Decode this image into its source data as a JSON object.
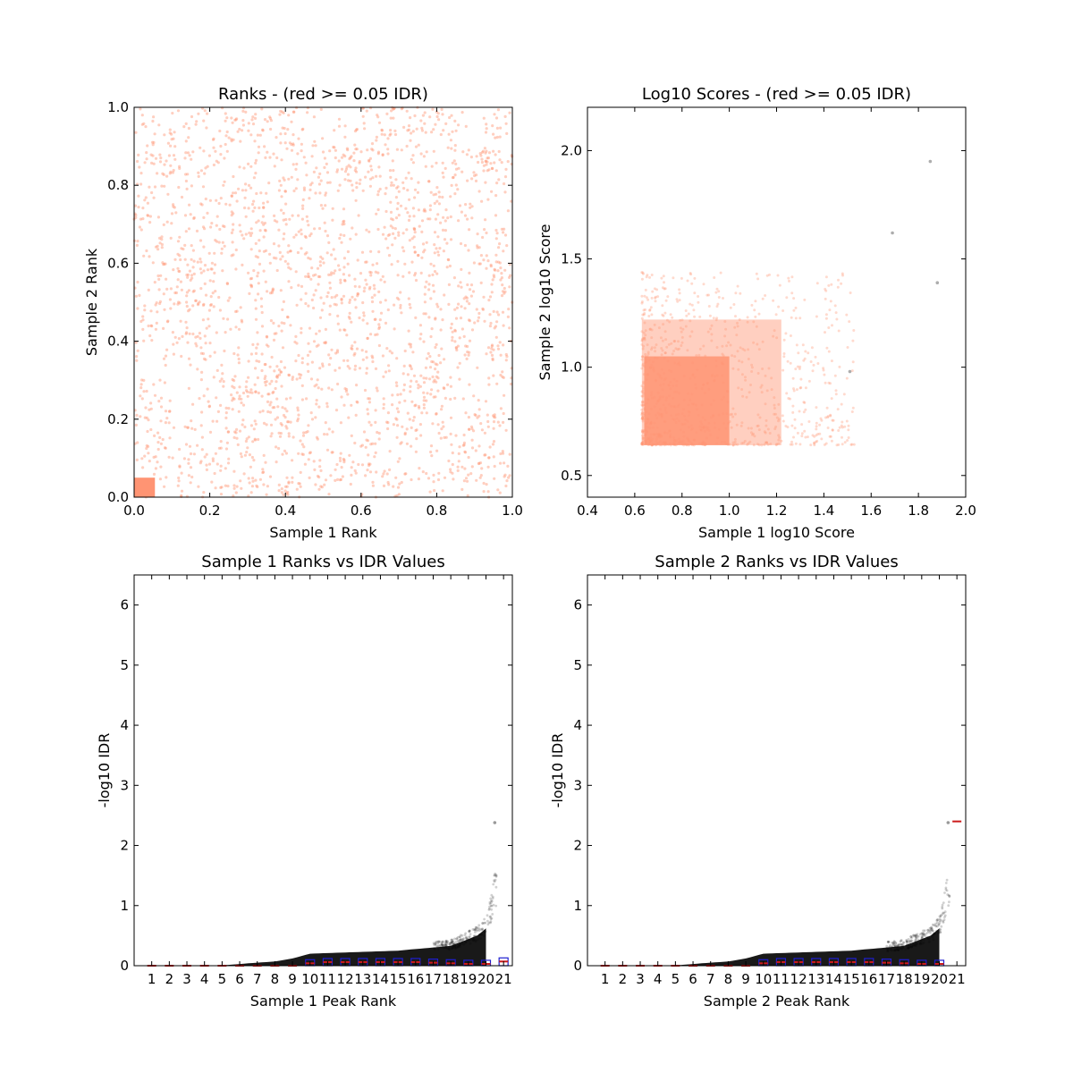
{
  "colors": {
    "salmon": "#ff9473",
    "black": "#000000",
    "box_blue": "#1f1fd0",
    "median_red": "#cc1a1a",
    "grey_point": "#999999"
  },
  "chart_data": [
    {
      "id": "ranks",
      "type": "scatter",
      "title": "Ranks - (red >= 0.05 IDR)",
      "xlabel": "Sample 1 Rank",
      "ylabel": "Sample 2 Rank",
      "xlim": [
        0.0,
        1.0
      ],
      "ylim": [
        0.0,
        1.0
      ],
      "xticks": [
        "0.0",
        "0.2",
        "0.4",
        "0.6",
        "0.8",
        "1.0"
      ],
      "yticks": [
        "0.0",
        "0.2",
        "0.4",
        "0.6",
        "0.8",
        "1.0"
      ],
      "color": "#ff9473",
      "dense_corner": {
        "x": [
          0.0,
          0.055
        ],
        "y": [
          0.0,
          0.05
        ]
      },
      "grid": false
    },
    {
      "id": "log10scores",
      "type": "scatter",
      "title": "Log10 Scores - (red >= 0.05 IDR)",
      "xlabel": "Sample 1 log10 Score",
      "ylabel": "Sample 2 log10 Score",
      "xlim": [
        0.4,
        2.0
      ],
      "ylim": [
        0.4,
        2.2
      ],
      "xticks": [
        "0.4",
        "0.6",
        "0.8",
        "1.0",
        "1.2",
        "1.4",
        "1.6",
        "1.8",
        "2.0"
      ],
      "yticks": [
        "0.5",
        "1.0",
        "1.5",
        "2.0"
      ],
      "color": "#ff9473",
      "dense_region": {
        "x": [
          0.63,
          1.22
        ],
        "y": [
          0.64,
          1.22
        ]
      },
      "outliers": [
        {
          "x": 1.85,
          "y": 1.95
        },
        {
          "x": 1.69,
          "y": 1.62
        },
        {
          "x": 1.88,
          "y": 1.39
        },
        {
          "x": 1.51,
          "y": 0.98
        }
      ],
      "grid": false
    },
    {
      "id": "s1idr",
      "type": "scatter",
      "title": "Sample 1 Ranks vs IDR Values",
      "xlabel": "Sample 1 Peak Rank",
      "ylabel": "-log10 IDR",
      "ylim": [
        0,
        6.5
      ],
      "xticks": [
        "1",
        "2",
        "3",
        "4",
        "5",
        "6",
        "7",
        "8",
        "9",
        "10",
        "11",
        "12",
        "13",
        "14",
        "15",
        "16",
        "17",
        "18",
        "19",
        "20",
        "21"
      ],
      "yticks": [
        "0",
        "1",
        "2",
        "3",
        "4",
        "5",
        "6"
      ],
      "curve": [
        {
          "x": 0,
          "y": 0.0
        },
        {
          "x": 5,
          "y": 0.005
        },
        {
          "x": 6.5,
          "y": 0.04
        },
        {
          "x": 8,
          "y": 0.07
        },
        {
          "x": 9,
          "y": 0.12
        },
        {
          "x": 10,
          "y": 0.2
        },
        {
          "x": 15,
          "y": 0.25
        },
        {
          "x": 18,
          "y": 0.33
        },
        {
          "x": 19.5,
          "y": 0.5
        },
        {
          "x": 20,
          "y": 0.62
        },
        {
          "x": 20.2,
          "y": 0.8
        },
        {
          "x": 20.5,
          "y": 1.2
        }
      ],
      "outlier": {
        "x": 20.5,
        "y": 2.38
      },
      "box_medians": [
        0.0,
        0.0,
        0.0,
        0.0,
        0.0,
        0.0,
        0.0,
        0.0,
        0.0,
        0.04,
        0.06,
        0.06,
        0.06,
        0.06,
        0.06,
        0.06,
        0.05,
        0.04,
        0.03,
        0.03,
        0.07
      ],
      "grid": false
    },
    {
      "id": "s2idr",
      "type": "scatter",
      "title": "Sample 2 Ranks vs IDR Values",
      "xlabel": "Sample 2 Peak Rank",
      "ylabel": "-log10 IDR",
      "ylim": [
        0,
        6.5
      ],
      "xticks": [
        "1",
        "2",
        "3",
        "4",
        "5",
        "6",
        "7",
        "8",
        "9",
        "10",
        "11",
        "12",
        "13",
        "14",
        "15",
        "16",
        "17",
        "18",
        "19",
        "20",
        "21"
      ],
      "yticks": [
        "0",
        "1",
        "2",
        "3",
        "4",
        "5",
        "6"
      ],
      "curve": [
        {
          "x": 0,
          "y": 0.0
        },
        {
          "x": 5,
          "y": 0.005
        },
        {
          "x": 6.5,
          "y": 0.04
        },
        {
          "x": 8,
          "y": 0.07
        },
        {
          "x": 9,
          "y": 0.12
        },
        {
          "x": 10,
          "y": 0.2
        },
        {
          "x": 15,
          "y": 0.25
        },
        {
          "x": 18,
          "y": 0.33
        },
        {
          "x": 19.5,
          "y": 0.5
        },
        {
          "x": 20,
          "y": 0.62
        },
        {
          "x": 20.2,
          "y": 0.8
        },
        {
          "x": 20.5,
          "y": 1.2
        }
      ],
      "outlier": {
        "x": 20.5,
        "y": 2.38
      },
      "box_medians": [
        0.0,
        0.0,
        0.0,
        0.0,
        0.0,
        0.0,
        0.0,
        0.0,
        0.0,
        0.04,
        0.06,
        0.06,
        0.06,
        0.06,
        0.06,
        0.06,
        0.05,
        0.04,
        0.03,
        0.03,
        2.4
      ],
      "grid": false
    }
  ]
}
